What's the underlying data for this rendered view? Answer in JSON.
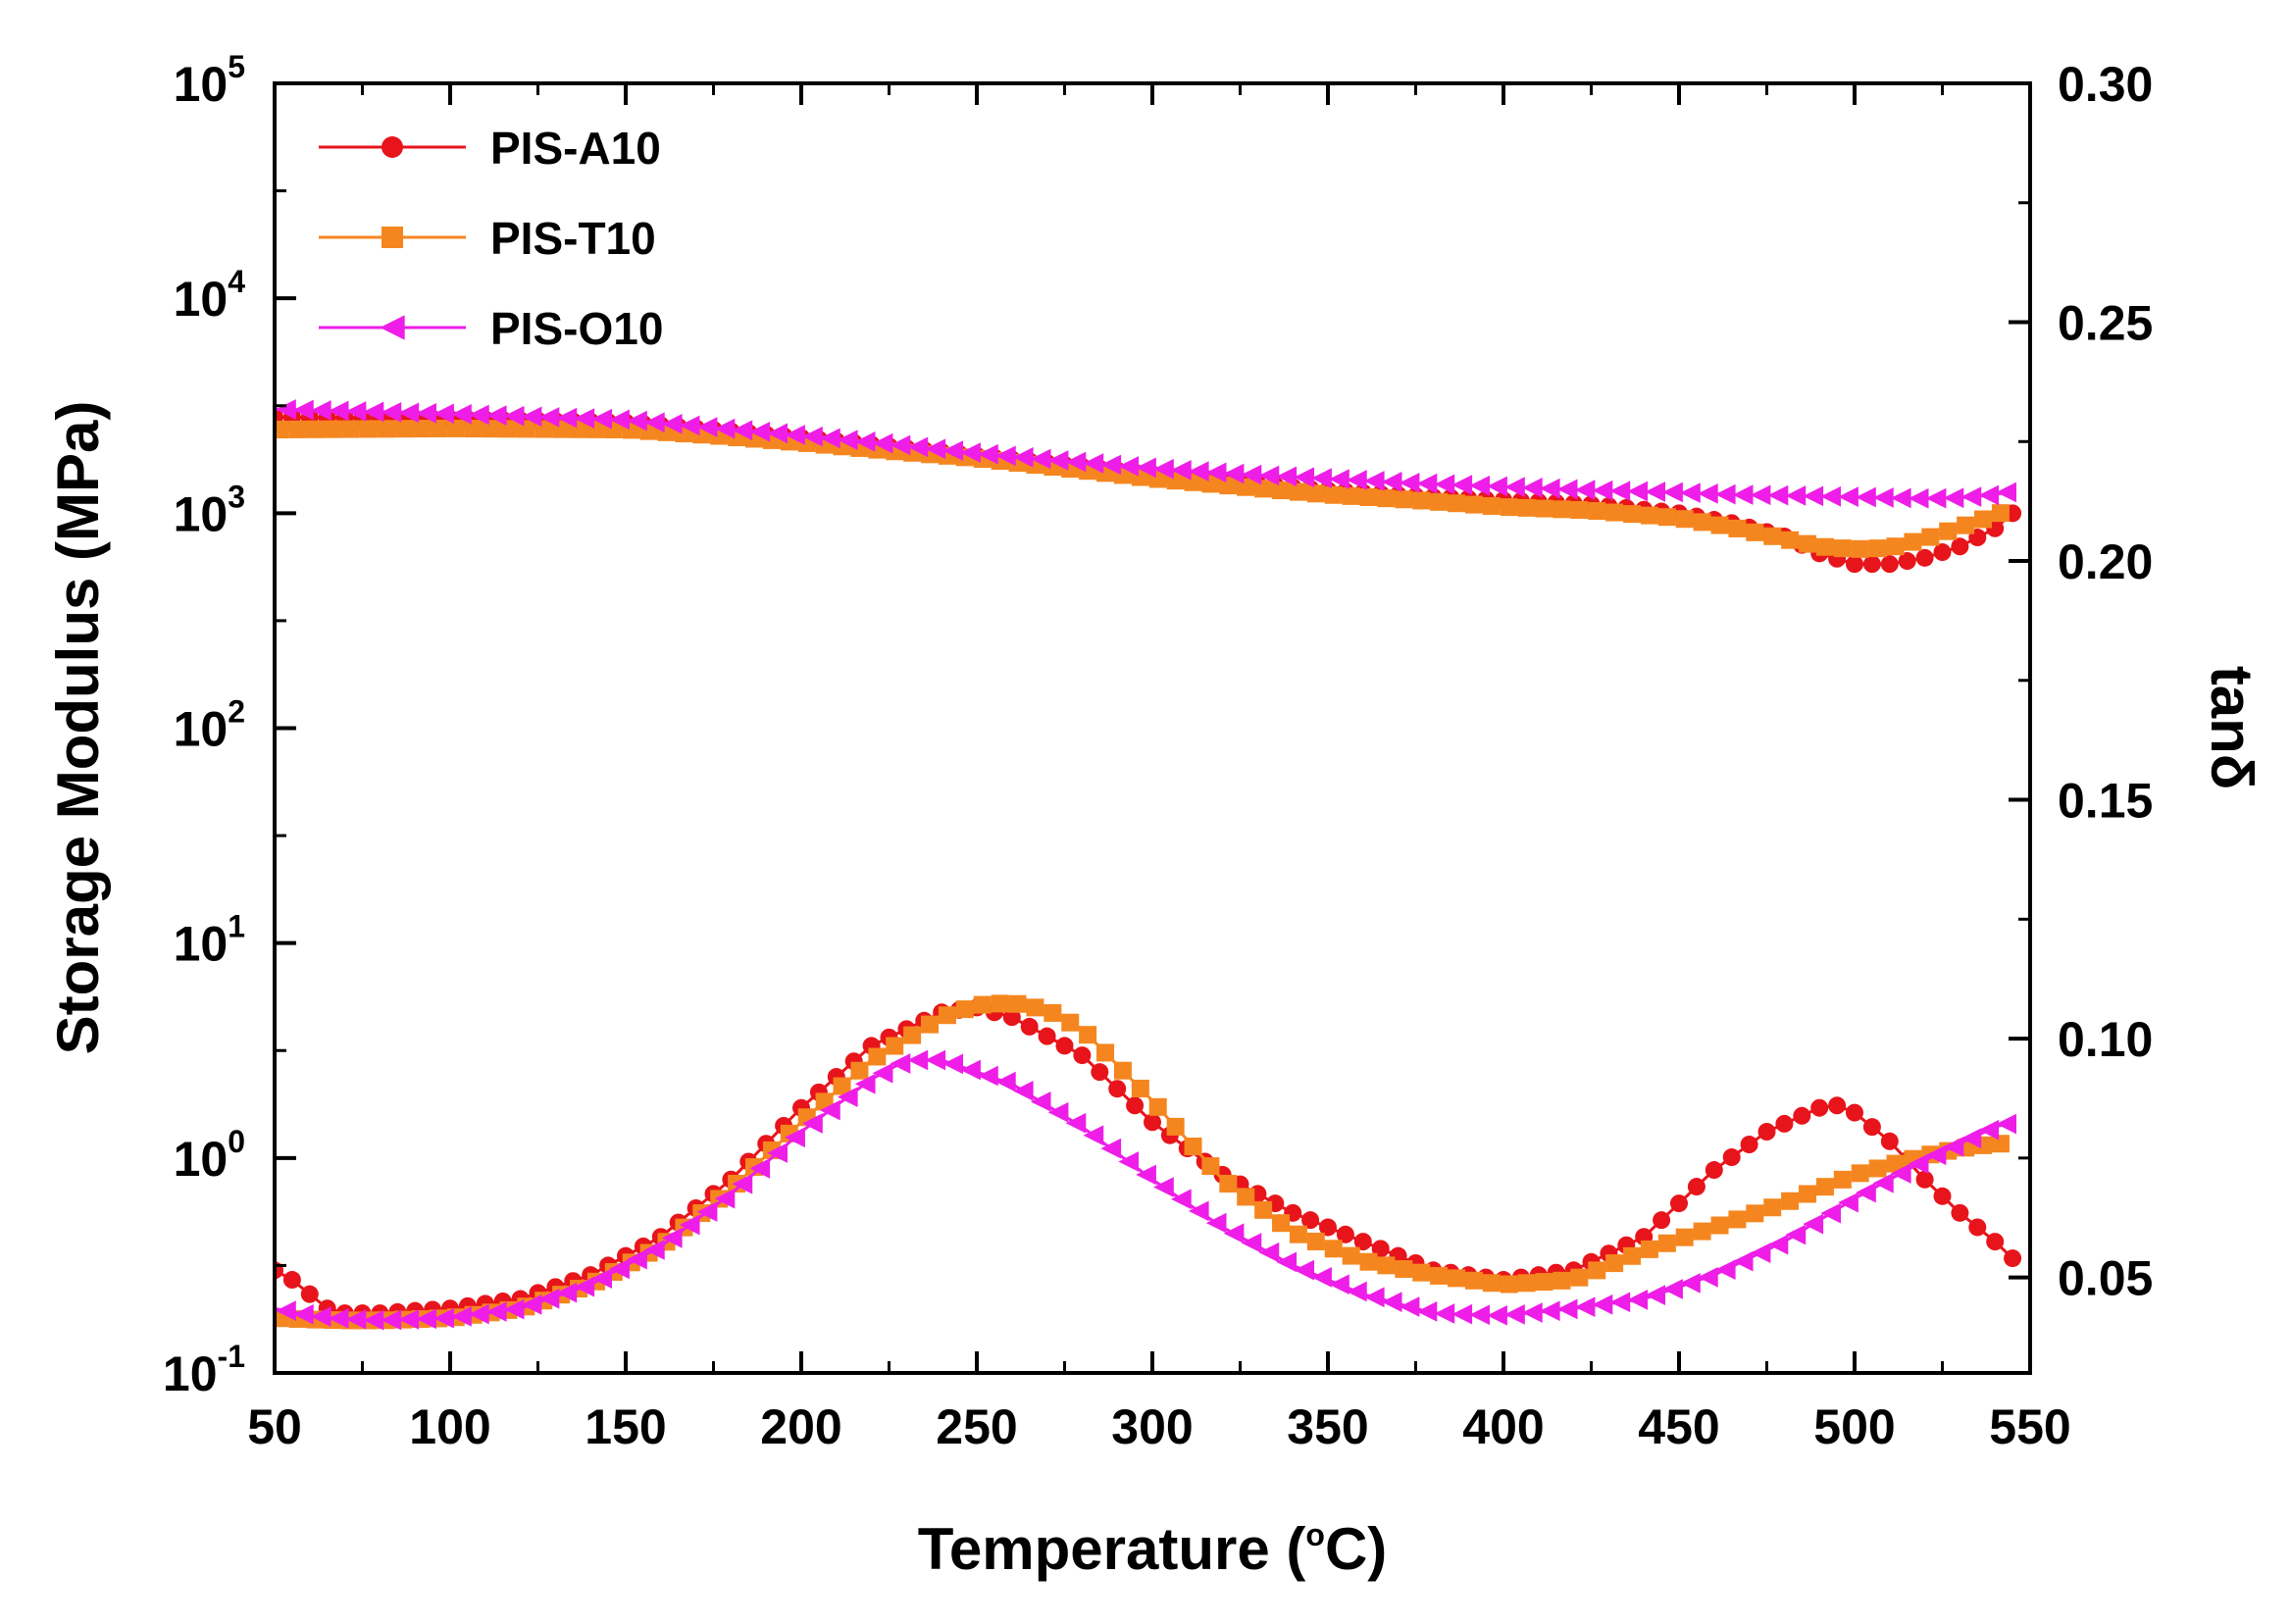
{
  "chart_data": {
    "type": "line",
    "x_axis": {
      "label": "Temperature (",
      "label_deg": "o",
      "label_unit": "C)",
      "range": [
        50,
        550
      ],
      "ticks": [
        "50",
        "100",
        "150",
        "200",
        "250",
        "300",
        "350",
        "400",
        "450",
        "500",
        "550"
      ]
    },
    "y_left": {
      "label": "Storage Modulus (MPa)",
      "scale": "log",
      "range": [
        0.1,
        100000
      ],
      "ticks": [
        {
          "base": "10",
          "exp": "5"
        },
        {
          "base": "10",
          "exp": "4"
        },
        {
          "base": "10",
          "exp": "3"
        },
        {
          "base": "10",
          "exp": "2"
        },
        {
          "base": "10",
          "exp": "1"
        },
        {
          "base": "10",
          "exp": "0"
        },
        {
          "base": "10",
          "exp": "-1"
        }
      ]
    },
    "y_right": {
      "label": "tanδ",
      "scale": "linear",
      "range": [
        0.03,
        0.3
      ],
      "ticks": [
        "0.30",
        "0.25",
        "0.20",
        "0.15",
        "0.10",
        "0.05"
      ]
    },
    "legend": {
      "placement": "top-left"
    },
    "series": [
      {
        "name": "PIS-A10",
        "color": "#e8141b",
        "marker": "circle",
        "storage_modulus": {
          "x": [
            50,
            100,
            150,
            175,
            200,
            225,
            250,
            275,
            300,
            325,
            350,
            375,
            400,
            425,
            450,
            465,
            480,
            490,
            500,
            510,
            520,
            530,
            540,
            545
          ],
          "y": [
            2800,
            2750,
            2650,
            2450,
            2250,
            2050,
            1850,
            1680,
            1520,
            1390,
            1280,
            1200,
            1150,
            1100,
            1000,
            900,
            780,
            650,
            580,
            580,
            620,
            700,
            850,
            1000
          ]
        },
        "tan_delta": {
          "x": [
            50,
            55,
            60,
            65,
            70,
            80,
            90,
            100,
            120,
            140,
            160,
            180,
            200,
            220,
            240,
            250,
            260,
            280,
            300,
            320,
            340,
            360,
            380,
            400,
            420,
            440,
            460,
            475,
            490,
            495,
            500,
            510,
            520,
            530,
            540,
            545
          ],
          "y": [
            0.0515,
            0.0495,
            0.0465,
            0.0435,
            0.0425,
            0.0425,
            0.043,
            0.0435,
            0.0455,
            0.0505,
            0.0585,
            0.0705,
            0.0855,
            0.0985,
            0.1055,
            0.1065,
            0.1045,
            0.0965,
            0.0825,
            0.0715,
            0.0635,
            0.0575,
            0.0515,
            0.0495,
            0.0515,
            0.0585,
            0.0725,
            0.0805,
            0.0855,
            0.086,
            0.0845,
            0.0785,
            0.0705,
            0.0635,
            0.0575,
            0.054
          ]
        }
      },
      {
        "name": "PIS-T10",
        "color": "#f5861f",
        "marker": "square",
        "storage_modulus": {
          "x": [
            50,
            100,
            150,
            175,
            200,
            225,
            250,
            275,
            300,
            325,
            350,
            375,
            400,
            425,
            450,
            465,
            480,
            490,
            500,
            510,
            520,
            530,
            540,
            545
          ],
          "y": [
            2450,
            2480,
            2450,
            2300,
            2130,
            1950,
            1800,
            1620,
            1450,
            1330,
            1220,
            1150,
            1070,
            1030,
            950,
            860,
            760,
            700,
            680,
            690,
            760,
            860,
            980,
            1050
          ]
        },
        "tan_delta": {
          "x": [
            50,
            60,
            70,
            80,
            100,
            120,
            140,
            160,
            180,
            200,
            220,
            240,
            250,
            260,
            270,
            280,
            300,
            320,
            340,
            360,
            380,
            400,
            420,
            440,
            460,
            480,
            500,
            520,
            530,
            540,
            545
          ],
          "y": [
            0.0415,
            0.0412,
            0.041,
            0.041,
            0.0415,
            0.0435,
            0.0485,
            0.0565,
            0.0685,
            0.0825,
            0.0955,
            0.1045,
            0.107,
            0.1075,
            0.106,
            0.102,
            0.087,
            0.0705,
            0.0595,
            0.0535,
            0.0505,
            0.0485,
            0.0495,
            0.0555,
            0.0605,
            0.0655,
            0.0715,
            0.0755,
            0.077,
            0.078,
            0.078
          ]
        }
      },
      {
        "name": "PIS-O10",
        "color": "#ee1ee8",
        "marker": "triangle-left",
        "storage_modulus": {
          "x": [
            50,
            100,
            150,
            175,
            200,
            225,
            250,
            275,
            300,
            325,
            350,
            375,
            400,
            425,
            450,
            465,
            480,
            490,
            500,
            510,
            520,
            530,
            540,
            545
          ],
          "y": [
            3050,
            2900,
            2720,
            2500,
            2300,
            2100,
            1900,
            1750,
            1620,
            1520,
            1450,
            1380,
            1330,
            1280,
            1250,
            1220,
            1210,
            1200,
            1190,
            1180,
            1170,
            1180,
            1220,
            1270
          ]
        },
        "tan_delta": {
          "x": [
            50,
            60,
            70,
            80,
            100,
            120,
            140,
            160,
            180,
            200,
            220,
            230,
            240,
            260,
            280,
            300,
            320,
            340,
            360,
            380,
            400,
            420,
            440,
            460,
            480,
            500,
            520,
            540,
            545
          ],
          "y": [
            0.0435,
            0.042,
            0.0413,
            0.041,
            0.0415,
            0.0435,
            0.0485,
            0.0565,
            0.0675,
            0.0805,
            0.0915,
            0.0955,
            0.0955,
            0.0905,
            0.0815,
            0.0705,
            0.0605,
            0.0525,
            0.0465,
            0.0425,
            0.042,
            0.0435,
            0.0455,
            0.0505,
            0.0575,
            0.0665,
            0.0745,
            0.0815,
            0.0825
          ]
        }
      }
    ]
  }
}
